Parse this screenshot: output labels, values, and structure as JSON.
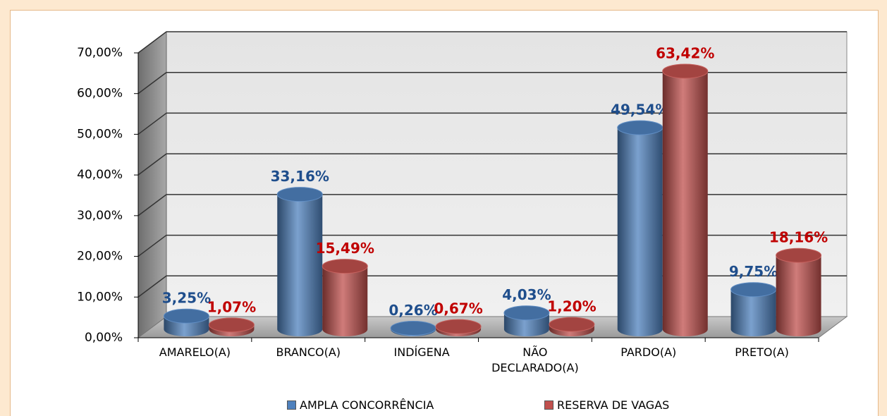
{
  "chart_data": {
    "type": "bar3d",
    "categories": [
      "AMARELO(A)",
      "BRANCO(A)",
      "INDÍGENA",
      "NÃO DECLARADO(A)",
      "PARDO(A)",
      "PRETO(A)"
    ],
    "series": [
      {
        "name": "AMPLA CONCORRÊNCIA",
        "color": "#4f81bd",
        "values": [
          3.25,
          33.16,
          0.26,
          4.03,
          49.54,
          9.75
        ],
        "value_labels": [
          "3,25%",
          "33,16%",
          "0,26%",
          "4,03%",
          "49,54%",
          "9,75%"
        ],
        "label_color": "#1f4e8c"
      },
      {
        "name": "RESERVA DE VAGAS",
        "color": "#c0504d",
        "values": [
          1.07,
          15.49,
          0.67,
          1.2,
          63.42,
          18.16
        ],
        "value_labels": [
          "1,07%",
          "15,49%",
          "0,67%",
          "1,20%",
          "63,42%",
          "18,16%"
        ],
        "label_color": "#c00000"
      }
    ],
    "ylim": [
      0,
      70
    ],
    "yticks": [
      {
        "value": 0,
        "label": "0,00%"
      },
      {
        "value": 10,
        "label": "10,00%"
      },
      {
        "value": 20,
        "label": "20,00%"
      },
      {
        "value": 30,
        "label": "30,00%"
      },
      {
        "value": 40,
        "label": "40,00%"
      },
      {
        "value": 50,
        "label": "50,00%"
      },
      {
        "value": 60,
        "label": "60,00%"
      },
      {
        "value": 70,
        "label": "70,00%"
      }
    ],
    "grid": true,
    "legend": "bottom"
  }
}
